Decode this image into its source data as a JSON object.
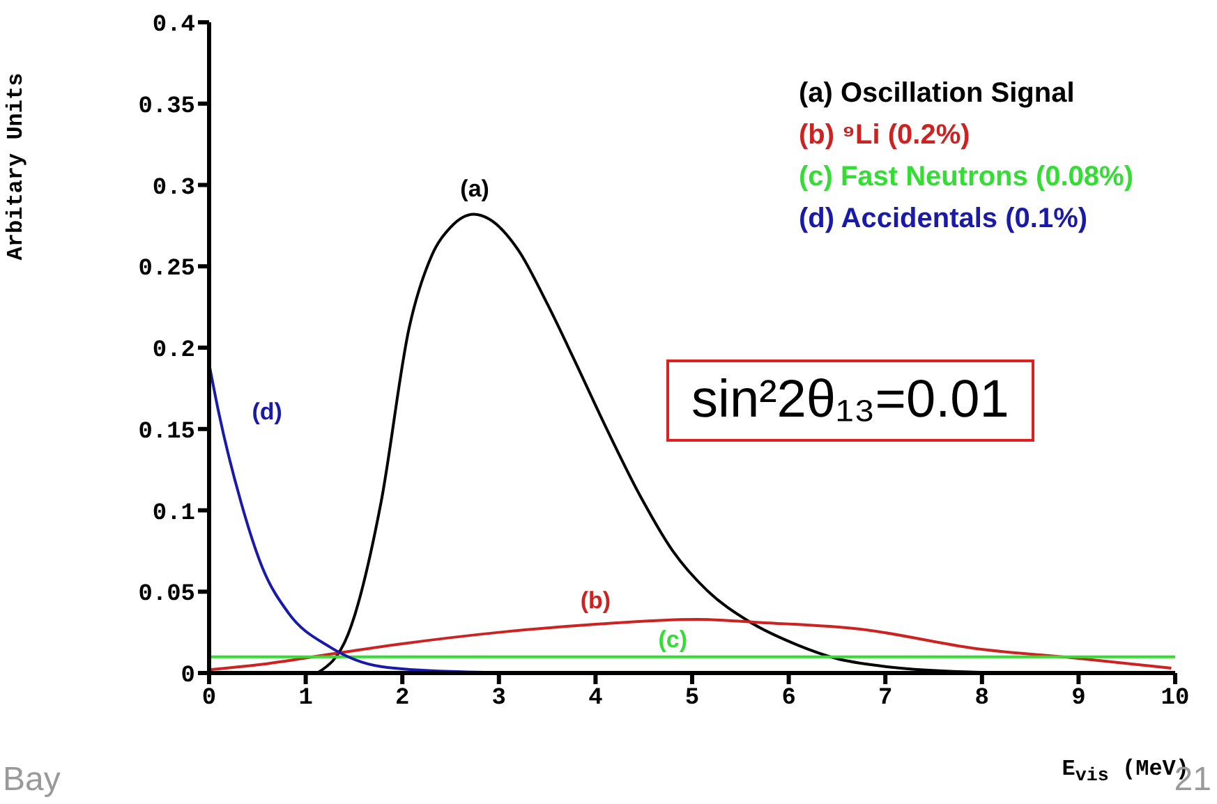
{
  "chart_data": {
    "type": "line",
    "xlabel": "E$_{vis}$ (MeV)",
    "ylabel": "Arbitary Units",
    "xlim": [
      0,
      10
    ],
    "xticks": [
      0,
      1,
      2,
      3,
      4,
      5,
      6,
      7,
      8,
      9,
      10
    ],
    "ylim": [
      0,
      0.4
    ],
    "yticks": [
      0,
      0.05,
      0.1,
      0.15,
      0.2,
      0.25,
      0.3,
      0.35,
      0.4
    ],
    "legend": "top right",
    "marker": "none",
    "line_style": "solid",
    "series": [
      {
        "name": "(a) Oscillation Signal",
        "color": "#000000",
        "x": [
          1.12,
          1.44,
          1.78,
          2.07,
          2.3,
          2.5,
          2.74,
          2.9,
          3.2,
          3.5,
          3.8,
          4.1,
          4.47,
          4.8,
          5.15,
          5.58,
          6.1,
          6.49,
          7.0,
          7.7,
          8.5,
          9.5,
          10
        ],
        "values": [
          0,
          0.024,
          0.105,
          0.212,
          0.256,
          0.274,
          0.282,
          0.279,
          0.26,
          0.227,
          0.19,
          0.152,
          0.108,
          0.075,
          0.051,
          0.032,
          0.017,
          0.009,
          0.004,
          0.001,
          0,
          0,
          0
        ]
      },
      {
        "name": "(b) ⁹Li (0.2%)",
        "color": "#cc2222",
        "x": [
          0,
          0.5,
          1.3,
          2,
          3,
          4,
          5.05,
          5.7,
          6.74,
          7.94,
          9,
          9.96
        ],
        "values": [
          0.002,
          0.005,
          0.012,
          0.018,
          0.025,
          0.03,
          0.033,
          0.031,
          0.027,
          0.015,
          0.009,
          0.003
        ]
      },
      {
        "name": "(c) Fast Neutrons (0.08%)",
        "color": "#33dd33",
        "x": [
          0,
          10
        ],
        "values": [
          0.01,
          0.01
        ]
      },
      {
        "name": "(d) Accidentals (0.1%)",
        "color": "#1a1aaa",
        "x": [
          0,
          0.1,
          0.33,
          0.55,
          0.82,
          1.25,
          1.78,
          2.5,
          3.5
        ],
        "values": [
          0.19,
          0.16,
          0.105,
          0.065,
          0.037,
          0.016,
          0.004,
          0.001,
          0
        ]
      }
    ],
    "annotations": [
      "(a)",
      "(b)",
      "(c)",
      "(d)",
      "sin²2θ₁₃=0.01",
      "Bay",
      "21"
    ]
  }
}
